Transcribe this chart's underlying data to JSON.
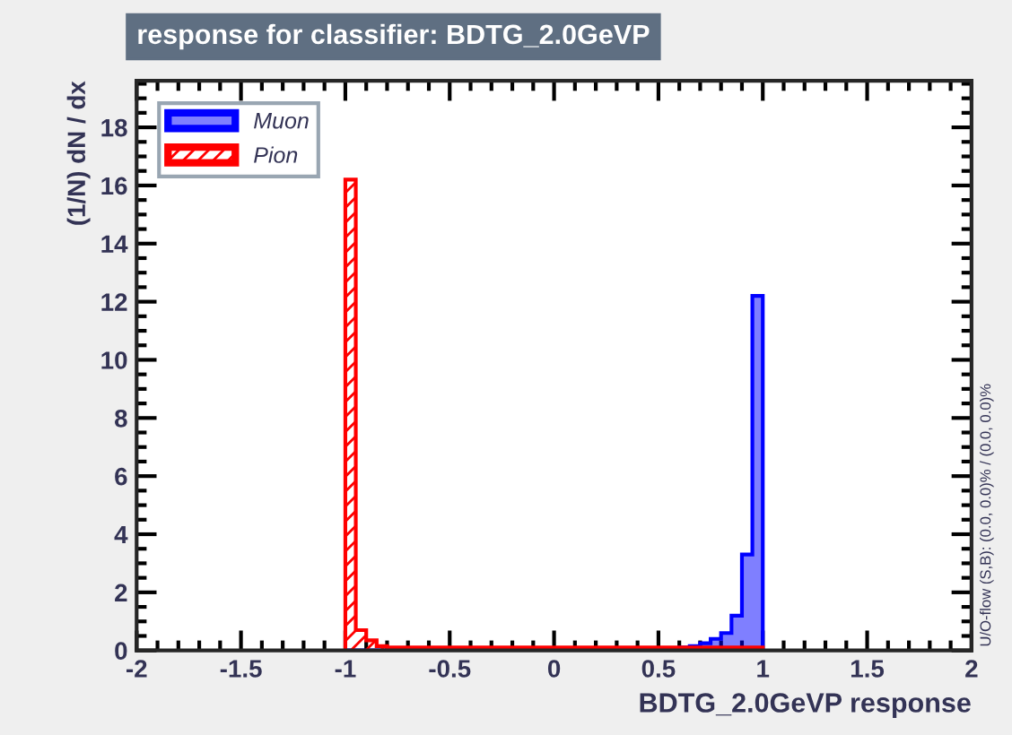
{
  "chart_data": {
    "type": "histogram",
    "title": "response for classifier: BDTG_2.0GeVP",
    "xlabel": "BDTG_2.0GeVP response",
    "ylabel": "(1/N) dN / dx",
    "bins": [
      -1.0,
      -0.95,
      -0.9,
      -0.85,
      -0.8,
      -0.75,
      -0.7,
      -0.65,
      -0.6,
      -0.55,
      -0.5,
      -0.45,
      -0.4,
      -0.35,
      -0.3,
      -0.25,
      -0.2,
      -0.15,
      -0.1,
      -0.05,
      0.0,
      0.05,
      0.1,
      0.15,
      0.2,
      0.25,
      0.3,
      0.35,
      0.4,
      0.45,
      0.5,
      0.55,
      0.6,
      0.65,
      0.7,
      0.75,
      0.8,
      0.85,
      0.9,
      0.95,
      1.0
    ],
    "series": [
      {
        "name": "Muon",
        "color": "#0000ff",
        "values": [
          0,
          0,
          0,
          0,
          0,
          0,
          0,
          0,
          0,
          0,
          0,
          0,
          0,
          0,
          0,
          0,
          0,
          0,
          0,
          0,
          0,
          0,
          0,
          0,
          0,
          0,
          0,
          0,
          0,
          0,
          0,
          0,
          0.1,
          0.15,
          0.25,
          0.4,
          0.6,
          1.2,
          3.3,
          12.2
        ]
      },
      {
        "name": "Pion",
        "color": "#ff0000",
        "values": [
          16.2,
          0.7,
          0.35,
          0.15,
          0.1,
          0.1,
          0.1,
          0.1,
          0.1,
          0.1,
          0.1,
          0.1,
          0.1,
          0.1,
          0.1,
          0.1,
          0.1,
          0.1,
          0.1,
          0.1,
          0.1,
          0.1,
          0.1,
          0.1,
          0.1,
          0.1,
          0.1,
          0.1,
          0.1,
          0.1,
          0.1,
          0.1,
          0.1,
          0.1,
          0.1,
          0.1,
          0.1,
          0.1,
          0.1,
          0.1
        ]
      }
    ],
    "xlim": [
      -2,
      2
    ],
    "xticks": [
      -2,
      -1.5,
      -1,
      -0.5,
      0,
      0.5,
      1,
      1.5,
      2
    ],
    "ylim": [
      0,
      19.6
    ],
    "yticks": [
      0,
      2,
      4,
      6,
      8,
      10,
      12,
      14,
      16,
      18
    ],
    "grid": false,
    "legend": "top left",
    "annotations": [
      "U/O-flow (S,B): (0.0, 0.0)% / (0.0, 0.0)%"
    ]
  }
}
